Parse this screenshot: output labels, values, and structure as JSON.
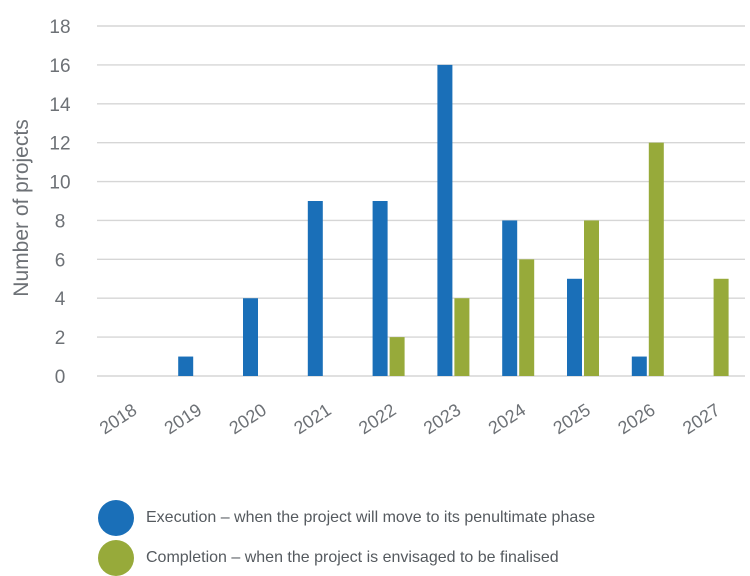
{
  "colors": {
    "execution": "#1a6fb8",
    "completion": "#97aa3a",
    "grid": "#d6d6d6",
    "text": "#6d7176"
  },
  "chart_data": {
    "type": "bar",
    "categories": [
      "2018",
      "2019",
      "2020",
      "2021",
      "2022",
      "2023",
      "2024",
      "2025",
      "2026",
      "2027"
    ],
    "series": [
      {
        "name": "Execution – when the project will move to its penultimate phase",
        "key": "execution",
        "values": [
          0,
          1,
          4,
          9,
          9,
          16,
          8,
          5,
          1,
          0
        ]
      },
      {
        "name": "Completion – when the project is envisaged to be finalised",
        "key": "completion",
        "values": [
          0,
          0,
          0,
          0,
          2,
          4,
          6,
          8,
          12,
          5
        ]
      }
    ],
    "ylabel": "Number of projects",
    "xlabel": "",
    "title": "",
    "yticks": [
      "0",
      "2",
      "4",
      "6",
      "8",
      "10",
      "12",
      "14",
      "16",
      "18"
    ],
    "ylim": [
      0,
      18
    ],
    "grid": true,
    "legend_position": "bottom"
  }
}
